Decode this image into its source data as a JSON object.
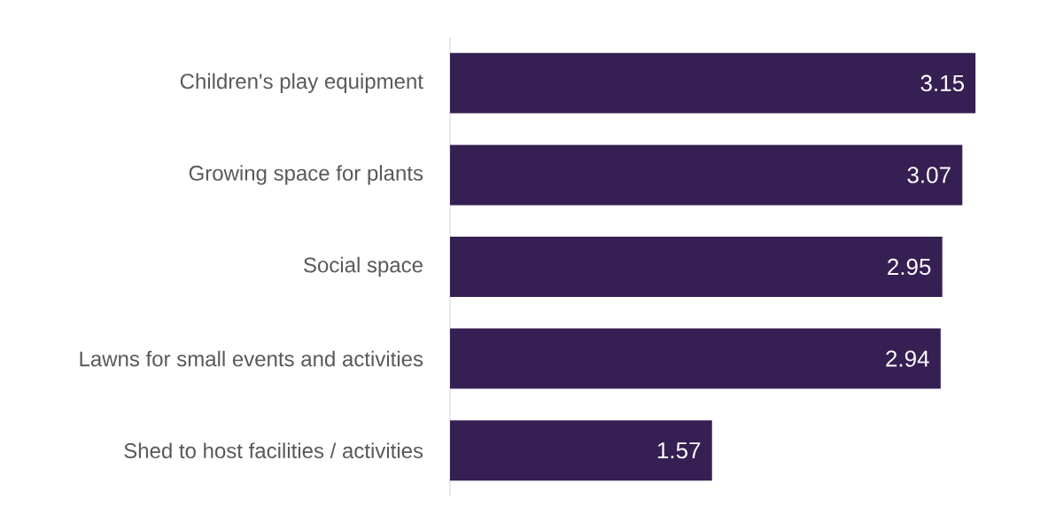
{
  "chart_data": {
    "type": "bar",
    "orientation": "horizontal",
    "categories": [
      "Children's play equipment",
      "Growing space for plants",
      "Social space",
      "Lawns for small events and activities",
      "Shed to host facilities / activities"
    ],
    "values": [
      3.15,
      3.07,
      2.95,
      2.94,
      1.57
    ],
    "color": "#361f52",
    "data_labels": true
  }
}
